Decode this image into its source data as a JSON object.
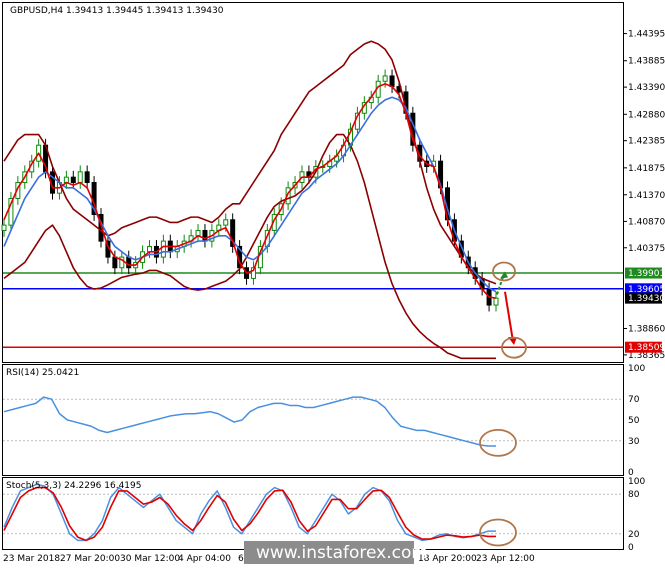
{
  "header": {
    "text": "GBPUSD,H4  1.39413 1.39445 1.39413 1.39430"
  },
  "watermark": {
    "text": "www.instaforex.com"
  },
  "colors": {
    "bull": "#0a8a0a",
    "bear": "#000000",
    "ma_fast": "#e00000",
    "ma_slow": "#3a6fe0",
    "bands": "#8b0000",
    "resistance": "#1f8a1f",
    "pivot": "#0000ff",
    "support": "#e00000",
    "rsi": "#4a90e0",
    "stoch_main": "#4a90e0",
    "stoch_signal": "#e00000",
    "ellipse": "#b0764a"
  },
  "chart_data": [
    {
      "type": "candlestick",
      "symbol": "GBPUSD,H4",
      "ylim": [
        1.3825,
        1.4495
      ],
      "yticks": [
        "1.44395",
        "1.43885",
        "1.43390",
        "1.42880",
        "1.42385",
        "1.41875",
        "1.41370",
        "1.40870",
        "1.40375",
        "1.38860",
        "1.38365"
      ],
      "xticks": [
        "23 Mar 2018",
        "27 Mar 20:00",
        "30 Mar 12:00",
        "4 Apr 04:00",
        "6",
        "18 Apr 20:00",
        "23 Apr 12:00"
      ],
      "price_tags": [
        {
          "value": 1.39901,
          "label": "1.39901",
          "role": "resistance"
        },
        {
          "value": 1.39605,
          "label": "1.39605",
          "role": "pivot"
        },
        {
          "value": 1.3943,
          "label": "1.39430",
          "role": "current"
        },
        {
          "value": 1.38509,
          "label": "1.38509",
          "role": "support"
        }
      ],
      "close": [
        1.408,
        1.413,
        1.416,
        1.418,
        1.42,
        1.423,
        1.418,
        1.414,
        1.416,
        1.417,
        1.416,
        1.418,
        1.416,
        1.41,
        1.405,
        1.402,
        1.4,
        1.402,
        1.4,
        1.401,
        1.403,
        1.404,
        1.402,
        1.405,
        1.403,
        1.404,
        1.405,
        1.406,
        1.407,
        1.405,
        1.407,
        1.408,
        1.409,
        1.404,
        1.4,
        1.398,
        1.4,
        1.404,
        1.407,
        1.41,
        1.412,
        1.415,
        1.416,
        1.418,
        1.417,
        1.419,
        1.419,
        1.42,
        1.421,
        1.423,
        1.426,
        1.429,
        1.431,
        1.432,
        1.435,
        1.436,
        1.434,
        1.433,
        1.429,
        1.423,
        1.42,
        1.419,
        1.42,
        1.415,
        1.409,
        1.405,
        1.402,
        1.4,
        1.398,
        1.396,
        1.393,
        1.3943
      ],
      "ma_fast": [
        1.409,
        1.412,
        1.415,
        1.417,
        1.4195,
        1.4215,
        1.419,
        1.415,
        1.415,
        1.416,
        1.4155,
        1.416,
        1.415,
        1.412,
        1.408,
        1.404,
        1.402,
        1.4015,
        1.4005,
        1.4005,
        1.402,
        1.403,
        1.403,
        1.404,
        1.404,
        1.404,
        1.4045,
        1.405,
        1.406,
        1.4055,
        1.406,
        1.407,
        1.4075,
        1.405,
        1.401,
        1.399,
        1.3995,
        1.403,
        1.406,
        1.409,
        1.411,
        1.414,
        1.4155,
        1.417,
        1.417,
        1.4185,
        1.419,
        1.42,
        1.421,
        1.423,
        1.4255,
        1.4285,
        1.4305,
        1.432,
        1.434,
        1.4345,
        1.434,
        1.4325,
        1.429,
        1.424,
        1.421,
        1.4195,
        1.419,
        1.415,
        1.409,
        1.405,
        1.402,
        1.4,
        1.398,
        1.396,
        1.3945,
        1.3943
      ],
      "ma_slow": [
        1.404,
        1.407,
        1.41,
        1.413,
        1.415,
        1.417,
        1.418,
        1.417,
        1.416,
        1.415,
        1.415,
        1.414,
        1.413,
        1.411,
        1.4085,
        1.406,
        1.404,
        1.403,
        1.402,
        1.4015,
        1.402,
        1.4025,
        1.4025,
        1.403,
        1.403,
        1.4035,
        1.404,
        1.4045,
        1.405,
        1.405,
        1.4055,
        1.406,
        1.406,
        1.405,
        1.4035,
        1.402,
        1.4015,
        1.4025,
        1.404,
        1.406,
        1.408,
        1.41,
        1.412,
        1.414,
        1.415,
        1.4165,
        1.4175,
        1.4185,
        1.4195,
        1.421,
        1.423,
        1.425,
        1.427,
        1.429,
        1.4305,
        1.4315,
        1.432,
        1.4315,
        1.43,
        1.427,
        1.424,
        1.4215,
        1.419,
        1.4155,
        1.411,
        1.407,
        1.404,
        1.401,
        1.399,
        1.3975,
        1.3962,
        1.3955
      ],
      "band_upper": [
        1.42,
        1.422,
        1.424,
        1.425,
        1.425,
        1.425,
        1.423,
        1.419,
        1.416,
        1.413,
        1.411,
        1.41,
        1.409,
        1.408,
        1.407,
        1.406,
        1.4065,
        1.4075,
        1.408,
        1.4085,
        1.409,
        1.4095,
        1.4095,
        1.409,
        1.4085,
        1.4085,
        1.409,
        1.4095,
        1.4095,
        1.409,
        1.4085,
        1.4095,
        1.411,
        1.412,
        1.412,
        1.414,
        1.416,
        1.418,
        1.42,
        1.422,
        1.425,
        1.427,
        1.429,
        1.431,
        1.433,
        1.434,
        1.435,
        1.436,
        1.437,
        1.438,
        1.44,
        1.441,
        1.442,
        1.4425,
        1.442,
        1.441,
        1.439,
        1.435,
        1.43,
        1.425,
        1.42,
        1.415,
        1.411,
        1.408,
        1.406,
        1.404,
        1.402,
        1.4,
        1.399,
        1.398,
        1.3975,
        1.397
      ],
      "band_lower": [
        1.398,
        1.399,
        1.4,
        1.401,
        1.403,
        1.405,
        1.407,
        1.408,
        1.406,
        1.403,
        1.4,
        1.398,
        1.3965,
        1.396,
        1.3962,
        1.3968,
        1.3975,
        1.3982,
        1.3985,
        1.3988,
        1.399,
        1.3995,
        1.3995,
        1.399,
        1.3985,
        1.3975,
        1.3965,
        1.396,
        1.3958,
        1.396,
        1.3965,
        1.397,
        1.3975,
        1.3985,
        1.3998,
        1.402,
        1.4045,
        1.407,
        1.4095,
        1.4115,
        1.4125,
        1.413,
        1.4135,
        1.4145,
        1.416,
        1.418,
        1.421,
        1.4235,
        1.425,
        1.425,
        1.423,
        1.42,
        1.416,
        1.411,
        1.406,
        1.401,
        1.397,
        1.394,
        1.3915,
        1.3895,
        1.388,
        1.3868,
        1.3858,
        1.385,
        1.384,
        1.3835,
        1.383,
        1.383,
        1.383,
        1.383,
        1.383,
        1.383
      ]
    },
    {
      "type": "line",
      "title": "RSI(14) 25.0421",
      "ylim": [
        0,
        100
      ],
      "yticks": [
        "100",
        "70",
        "50",
        "30",
        "0"
      ],
      "values": [
        58,
        60,
        62,
        64,
        66,
        72,
        70,
        56,
        50,
        48,
        46,
        44,
        40,
        38,
        40,
        42,
        44,
        46,
        48,
        50,
        52,
        54,
        55,
        56,
        56,
        57,
        58,
        56,
        52,
        48,
        50,
        58,
        62,
        64,
        66,
        66,
        64,
        64,
        62,
        62,
        64,
        66,
        68,
        70,
        72,
        72,
        70,
        68,
        62,
        52,
        44,
        42,
        40,
        40,
        38,
        36,
        34,
        32,
        30,
        28,
        26,
        25,
        25
      ]
    },
    {
      "type": "line",
      "title": "Stoch(5,3,3) 24.2296 16.4195",
      "ylim": [
        0,
        100
      ],
      "yticks": [
        "100",
        "80",
        "20",
        "0"
      ],
      "series": [
        {
          "values": [
            30,
            60,
            85,
            90,
            95,
            92,
            80,
            50,
            20,
            10,
            10,
            20,
            40,
            75,
            90,
            80,
            70,
            60,
            70,
            80,
            60,
            40,
            30,
            20,
            50,
            70,
            85,
            60,
            30,
            20,
            40,
            60,
            80,
            90,
            85,
            60,
            30,
            20,
            40,
            60,
            80,
            70,
            50,
            60,
            80,
            90,
            85,
            70,
            40,
            20,
            15,
            10,
            12,
            18,
            20,
            16,
            14,
            16,
            20,
            24,
            24
          ]
        },
        {
          "values": [
            25,
            50,
            75,
            85,
            90,
            90,
            82,
            60,
            32,
            15,
            10,
            15,
            30,
            60,
            85,
            85,
            75,
            65,
            68,
            75,
            65,
            48,
            35,
            25,
            40,
            60,
            78,
            68,
            42,
            25,
            35,
            52,
            72,
            85,
            86,
            68,
            40,
            24,
            32,
            52,
            72,
            72,
            58,
            58,
            72,
            85,
            86,
            75,
            52,
            30,
            18,
            12,
            12,
            15,
            18,
            17,
            15,
            16,
            18,
            16,
            16
          ]
        }
      ]
    }
  ]
}
